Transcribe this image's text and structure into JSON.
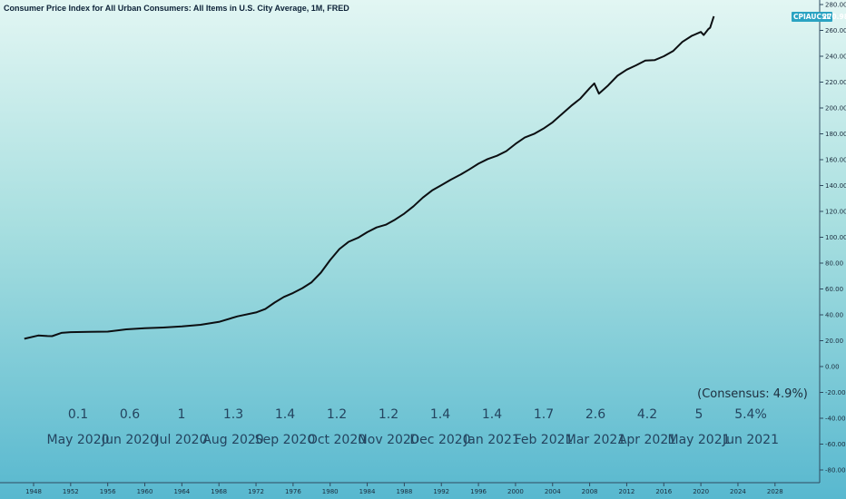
{
  "chart_data": {
    "type": "line",
    "title": "Consumer Price Index for All Urban Consumers: All Items in U.S. City Average, 1M, FRED",
    "symbol": "CPIAUCSL",
    "last_value": "270.98",
    "xlim": [
      1947,
      2031
    ],
    "ylim": [
      -90,
      285
    ],
    "x_ticks": [
      "1948",
      "1952",
      "1956",
      "1960",
      "1964",
      "1968",
      "1972",
      "1976",
      "1980",
      "1984",
      "1988",
      "1992",
      "1996",
      "2000",
      "2004",
      "2008",
      "2012",
      "2016",
      "2020",
      "2024",
      "2028"
    ],
    "y_ticks": [
      "280.00",
      "260.00",
      "240.00",
      "220.00",
      "200.00",
      "180.00",
      "160.00",
      "140.00",
      "120.00",
      "100.00",
      "80.00",
      "60.00",
      "40.00",
      "20.00",
      "0.00",
      "-20.00",
      "-40.00",
      "-60.00",
      "-80.00"
    ],
    "series": [
      {
        "x": [
          1947.0,
          1948.5,
          1949.5,
          1950.0,
          1951.0,
          1952.0,
          1954.0,
          1956.0,
          1958.0,
          1960.0,
          1962.0,
          1964.0,
          1966.0,
          1968.0,
          1970.0,
          1972.0,
          1973.0,
          1974.0,
          1975.0,
          1976.0,
          1977.0,
          1978.0,
          1979.0,
          1980.0,
          1981.0,
          1982.0,
          1983.0,
          1984.0,
          1985.0,
          1986.0,
          1987.0,
          1988.0,
          1989.0,
          1990.0,
          1991.0,
          1992.0,
          1993.0,
          1994.0,
          1995.0,
          1996.0,
          1997.0,
          1998.0,
          1999.0,
          2000.0,
          2001.0,
          2002.0,
          2003.0,
          2004.0,
          2005.0,
          2006.0,
          2007.0,
          2008.0,
          2008.5,
          2009.0,
          2010.0,
          2011.0,
          2012.0,
          2013.0,
          2014.0,
          2015.0,
          2016.0,
          2017.0,
          2018.0,
          2019.0,
          2020.0,
          2020.3,
          2020.8,
          2021.0,
          2021.4
        ],
        "y": [
          21.5,
          24.0,
          23.6,
          23.5,
          26.0,
          26.6,
          26.9,
          27.0,
          28.8,
          29.6,
          30.2,
          31.0,
          32.3,
          34.5,
          38.8,
          41.8,
          44.5,
          49.5,
          53.8,
          56.9,
          60.6,
          65.2,
          72.6,
          82.4,
          90.9,
          96.5,
          99.6,
          103.9,
          107.6,
          109.7,
          113.6,
          118.3,
          124.0,
          130.7,
          136.2,
          140.3,
          144.5,
          148.2,
          152.4,
          156.9,
          160.5,
          163.0,
          166.6,
          172.2,
          177.1,
          179.9,
          184.0,
          188.9,
          195.3,
          201.6,
          207.3,
          215.3,
          219.0,
          211.1,
          217.5,
          224.9,
          229.6,
          233.0,
          236.7,
          237.0,
          240.0,
          244.0,
          251.1,
          255.7,
          258.8,
          256.4,
          261.0,
          262.0,
          270.98
        ]
      }
    ],
    "annotations": {
      "values": [
        "0.1",
        "0.6",
        "1",
        "1.3",
        "1.4",
        "1.2",
        "1.2",
        "1.4",
        "1.4",
        "1.7",
        "2.6",
        "4.2",
        "5",
        "5.4%"
      ],
      "months": [
        "May 2020",
        "Jun 2020",
        "Jul 2020",
        "Aug 2020",
        "Sep 2020",
        "Oct 2020",
        "Nov 2020",
        "Dec 2020",
        "Jan 2021",
        "Feb 2021",
        "Mar 2021",
        "Apr 2021",
        "May 2021",
        "Jun 2021"
      ],
      "consensus": "(Consensus: 4.9%)"
    },
    "colors": {
      "background_top": "#dff5f3",
      "background_bottom": "#5fbcd1",
      "line": "#0c0f12",
      "badge": "#2aa3c2",
      "text": "#24445f"
    }
  }
}
